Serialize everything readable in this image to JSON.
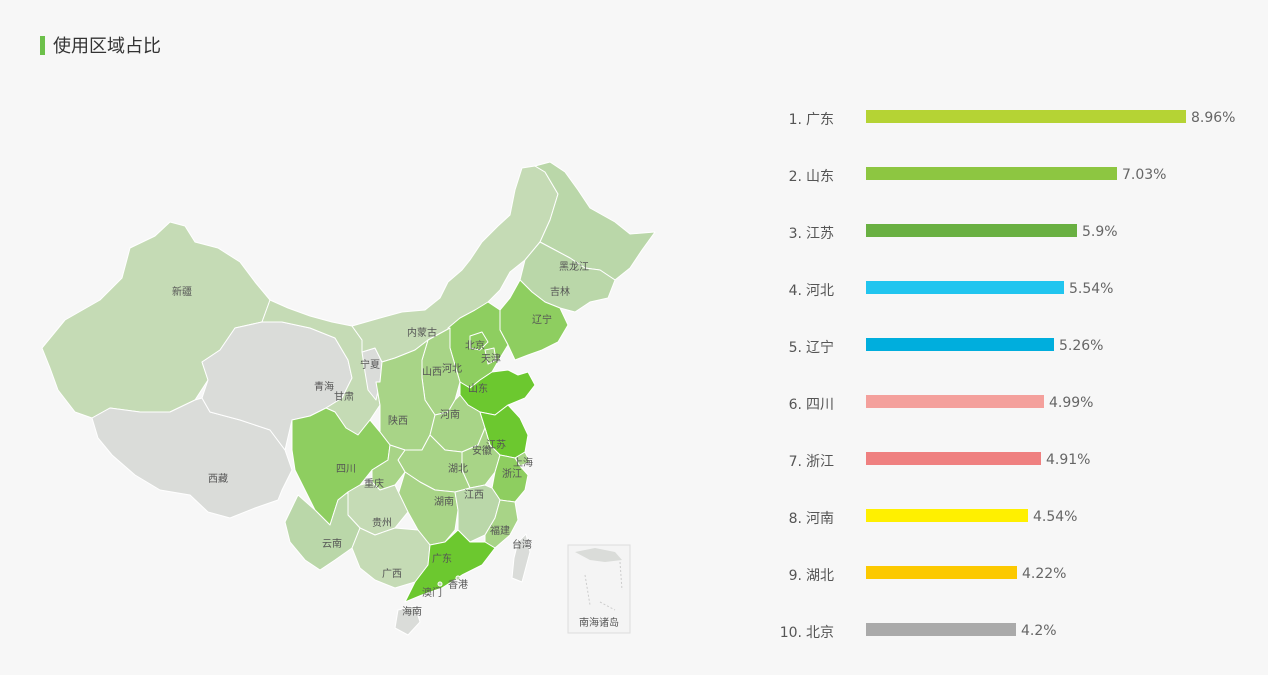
{
  "title": "使用区域占比",
  "chart_data": {
    "type": "bar",
    "orientation": "horizontal",
    "title": "使用区域占比",
    "categories": [
      "广东",
      "山东",
      "江苏",
      "河北",
      "辽宁",
      "四川",
      "浙江",
      "河南",
      "湖北",
      "北京"
    ],
    "values": [
      8.96,
      7.03,
      5.9,
      5.54,
      5.26,
      4.99,
      4.91,
      4.54,
      4.22,
      4.2
    ],
    "value_labels": [
      "8.96%",
      "7.03%",
      "5.9%",
      "5.54%",
      "5.26%",
      "4.99%",
      "4.91%",
      "4.54%",
      "4.22%",
      "4.2%"
    ],
    "ranks": [
      "1.",
      "2.",
      "3.",
      "4.",
      "5.",
      "6.",
      "7.",
      "8.",
      "9.",
      "10."
    ],
    "colors": [
      "#b5d334",
      "#8dc641",
      "#69b042",
      "#21c5ef",
      "#00aedd",
      "#f4a09c",
      "#ef8080",
      "#fff000",
      "#fcc900",
      "#aaaaaa"
    ],
    "xlim": [
      0,
      8.96
    ]
  },
  "map": {
    "type": "choropleth",
    "colors": {
      "level5": "#6cc82f",
      "level4": "#8ece60",
      "level3": "#a8d487",
      "level2": "#bad7a9",
      "level1": "#c5dbb5",
      "none": "#dadcd9"
    },
    "labels": [
      "新疆",
      "西藏",
      "青海",
      "甘肃",
      "宁夏",
      "内蒙古",
      "黑龙江",
      "吉林",
      "辽宁",
      "北京",
      "天津",
      "河北",
      "山西",
      "山东",
      "陕西",
      "河南",
      "四川",
      "重庆",
      "湖北",
      "安徽",
      "江苏",
      "上海",
      "浙江",
      "湖南",
      "江西",
      "贵州",
      "云南",
      "广西",
      "广东",
      "福建",
      "台湾",
      "香港",
      "澳门",
      "海南",
      "南海诸岛"
    ]
  }
}
